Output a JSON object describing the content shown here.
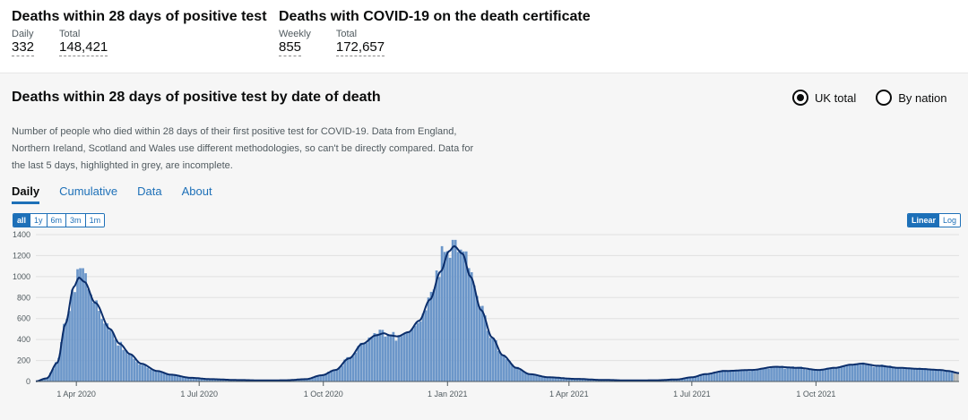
{
  "headline": [
    {
      "title": "Deaths within 28 days of positive test",
      "metrics": [
        {
          "label": "Daily",
          "value": "332"
        },
        {
          "label": "Total",
          "value": "148,421"
        }
      ]
    },
    {
      "title": "Deaths with COVID-19 on the death certificate",
      "metrics": [
        {
          "label": "Weekly",
          "value": "855"
        },
        {
          "label": "Total",
          "value": "172,657"
        }
      ]
    }
  ],
  "card": {
    "title": "Deaths within 28 days of positive test by date of death",
    "radios": [
      {
        "label": "UK total",
        "checked": true
      },
      {
        "label": "By nation",
        "checked": false
      }
    ],
    "description": "Number of people who died within 28 days of their first positive test for COVID-19. Data from England, Northern Ireland, Scotland and Wales use different methodologies, so can't be directly compared. Data for the last 5 days, highlighted in grey, are incomplete.",
    "tabs": [
      {
        "label": "Daily",
        "active": true
      },
      {
        "label": "Cumulative",
        "active": false
      },
      {
        "label": "Data",
        "active": false
      },
      {
        "label": "About",
        "active": false
      }
    ],
    "range_buttons": [
      {
        "label": "all",
        "active": true
      },
      {
        "label": "1y",
        "active": false
      },
      {
        "label": "6m",
        "active": false
      },
      {
        "label": "3m",
        "active": false
      },
      {
        "label": "1m",
        "active": false
      }
    ],
    "scale_buttons": [
      {
        "label": "Linear",
        "active": true
      },
      {
        "label": "Log",
        "active": false
      }
    ]
  },
  "colors": {
    "bar": "#6b96c9",
    "bar_incomplete": "#b1b4b6",
    "average_line": "#0b2e6b",
    "accent": "#1d70b8"
  },
  "chart_data": {
    "type": "bar",
    "title": "Deaths within 28 days of positive test by date of death",
    "xlabel": "",
    "ylabel": "",
    "start_date": "2020-03-02",
    "bin_days": 2,
    "ylim": [
      0,
      1400
    ],
    "yticks": [
      0,
      200,
      400,
      600,
      800,
      1000,
      1200,
      1400
    ],
    "x_ticks": [
      {
        "label": "1 Apr 2020",
        "day": 30
      },
      {
        "label": "1 Jul 2020",
        "day": 121
      },
      {
        "label": "1 Oct 2020",
        "day": 213
      },
      {
        "label": "1 Jan 2021",
        "day": 305
      },
      {
        "label": "1 Apr 2021",
        "day": 395
      },
      {
        "label": "1 Jul 2021",
        "day": 486
      },
      {
        "label": "1 Oct 2021",
        "day": 578
      }
    ],
    "total_days": 684,
    "incomplete_last_days": 5,
    "series": [
      {
        "name": "Daily deaths",
        "style": "bars"
      },
      {
        "name": "7-day rolling average",
        "style": "line"
      }
    ],
    "anchors": [
      [
        0,
        2
      ],
      [
        8,
        30
      ],
      [
        16,
        180
      ],
      [
        22,
        550
      ],
      [
        28,
        900
      ],
      [
        32,
        990
      ],
      [
        36,
        950
      ],
      [
        44,
        750
      ],
      [
        55,
        500
      ],
      [
        62,
        360
      ],
      [
        70,
        260
      ],
      [
        78,
        170
      ],
      [
        90,
        100
      ],
      [
        100,
        65
      ],
      [
        115,
        35
      ],
      [
        130,
        22
      ],
      [
        150,
        14
      ],
      [
        170,
        10
      ],
      [
        185,
        12
      ],
      [
        200,
        22
      ],
      [
        212,
        60
      ],
      [
        222,
        110
      ],
      [
        232,
        220
      ],
      [
        242,
        360
      ],
      [
        252,
        440
      ],
      [
        258,
        460
      ],
      [
        262,
        440
      ],
      [
        268,
        430
      ],
      [
        276,
        470
      ],
      [
        284,
        580
      ],
      [
        292,
        780
      ],
      [
        300,
        1050
      ],
      [
        306,
        1240
      ],
      [
        310,
        1290
      ],
      [
        316,
        1220
      ],
      [
        322,
        1000
      ],
      [
        330,
        680
      ],
      [
        338,
        420
      ],
      [
        346,
        250
      ],
      [
        356,
        130
      ],
      [
        366,
        70
      ],
      [
        380,
        40
      ],
      [
        400,
        25
      ],
      [
        420,
        15
      ],
      [
        440,
        10
      ],
      [
        460,
        12
      ],
      [
        475,
        20
      ],
      [
        486,
        40
      ],
      [
        496,
        70
      ],
      [
        510,
        100
      ],
      [
        530,
        110
      ],
      [
        548,
        140
      ],
      [
        565,
        130
      ],
      [
        580,
        110
      ],
      [
        592,
        130
      ],
      [
        604,
        160
      ],
      [
        612,
        170
      ],
      [
        624,
        150
      ],
      [
        640,
        130
      ],
      [
        655,
        120
      ],
      [
        670,
        110
      ],
      [
        676,
        100
      ],
      [
        684,
        80
      ]
    ],
    "spikes": [
      [
        33,
        1080
      ],
      [
        300,
        1290
      ],
      [
        309,
        1350
      ],
      [
        317,
        1240
      ]
    ]
  }
}
